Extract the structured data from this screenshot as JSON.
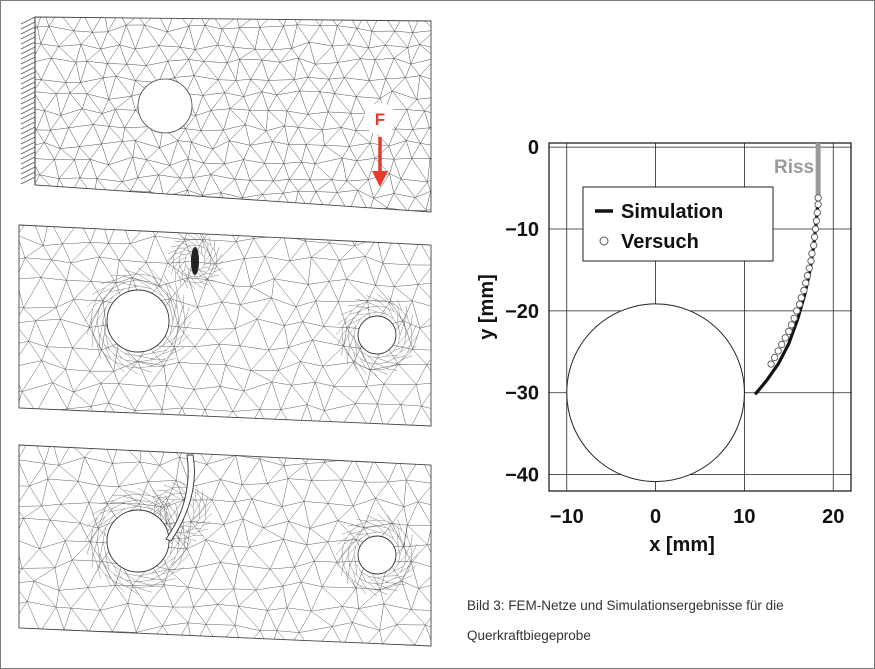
{
  "figure": {
    "caption": "Bild 3: FEM-Netze und Simulationsergebnisse für die Querkraftbiegeprobe",
    "force_label": "F",
    "force_color": "#e63a2e",
    "crack_label": "Riss",
    "crack_color": "#9a9a9a"
  },
  "meshes": [
    {
      "name": "initial-mesh",
      "hole_large": true,
      "hole_small": false,
      "crack": false
    },
    {
      "name": "refined-mesh",
      "hole_large": true,
      "hole_small": true,
      "crack": "short"
    },
    {
      "name": "cracked-mesh",
      "hole_large": true,
      "hole_small": true,
      "crack": "long"
    }
  ],
  "chart_data": {
    "type": "line",
    "title": "",
    "xlabel": "x [mm]",
    "ylabel": "y [mm]",
    "xlim": [
      -12,
      22
    ],
    "ylim": [
      -42,
      0.5
    ],
    "xticks": [
      -10,
      0,
      10,
      20
    ],
    "yticks": [
      0,
      -10,
      -20,
      -30,
      -40
    ],
    "xtick_labels": [
      "−10",
      "0",
      "10",
      "20"
    ],
    "ytick_labels": [
      "0",
      "−10",
      "−20",
      "−30",
      "−40"
    ],
    "grid": true,
    "legend": {
      "position": "top-left",
      "entries": [
        "Simulation",
        "Versuch"
      ]
    },
    "circle": {
      "cx": 0,
      "cy": -30,
      "r": 10
    },
    "series": [
      {
        "name": "Simulation",
        "style": "line",
        "x": [
          11.2,
          12.5,
          13.8,
          15.0,
          16.0,
          16.8,
          17.4,
          17.8,
          18.1,
          18.3
        ],
        "y": [
          -30.2,
          -28.5,
          -26.5,
          -24.0,
          -21.0,
          -18.0,
          -15.0,
          -12.0,
          -9.0,
          -6.2
        ]
      },
      {
        "name": "Versuch",
        "style": "markers",
        "x": [
          13.0,
          13.4,
          13.8,
          14.2,
          14.6,
          15.0,
          15.3,
          15.6,
          15.9,
          16.2,
          16.4,
          16.7,
          16.9,
          17.1,
          17.3,
          17.5,
          17.6,
          17.8,
          17.9,
          18.0,
          18.1,
          18.2,
          18.3,
          18.3
        ],
        "y": [
          -26.5,
          -25.7,
          -24.9,
          -24.1,
          -23.3,
          -22.5,
          -21.7,
          -20.9,
          -20.0,
          -19.2,
          -18.4,
          -17.5,
          -16.6,
          -15.7,
          -14.8,
          -13.9,
          -13.0,
          -12.0,
          -11.0,
          -10.0,
          -9.0,
          -8.0,
          -7.0,
          -6.2
        ]
      },
      {
        "name": "Riss",
        "style": "crack",
        "x": [
          18.3,
          18.3
        ],
        "y": [
          -6.2,
          0.5
        ]
      }
    ]
  }
}
